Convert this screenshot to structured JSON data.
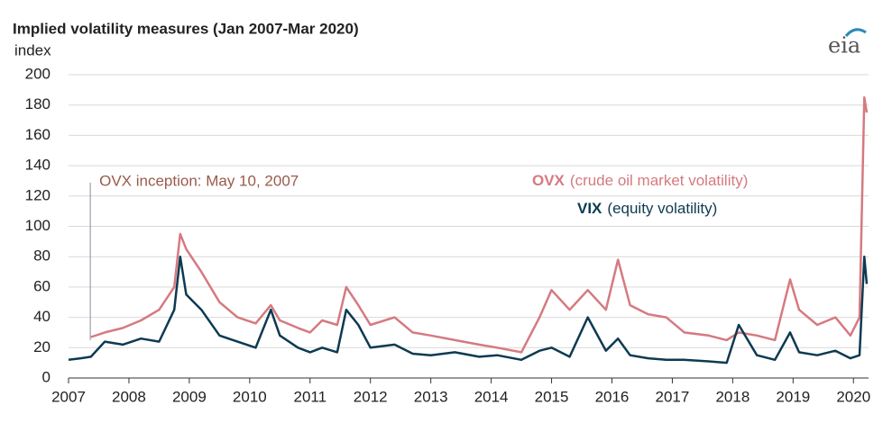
{
  "chart_data": {
    "type": "line",
    "title": "Implied volatility measures (Jan 2007-Mar 2020)",
    "y_label": "index",
    "logo": "eia",
    "annotation": "OVX inception: May 10, 2007",
    "annotation_x": 2007.36,
    "x": [
      2007.0,
      2007.2,
      2007.37,
      2007.6,
      2007.9,
      2008.2,
      2008.5,
      2008.75,
      2008.85,
      2008.95,
      2009.2,
      2009.5,
      2009.8,
      2010.1,
      2010.35,
      2010.5,
      2010.8,
      2011.0,
      2011.2,
      2011.45,
      2011.6,
      2011.8,
      2012.0,
      2012.4,
      2012.7,
      2013.0,
      2013.4,
      2013.8,
      2014.1,
      2014.5,
      2014.8,
      2015.0,
      2015.3,
      2015.6,
      2015.9,
      2016.1,
      2016.3,
      2016.6,
      2016.9,
      2017.2,
      2017.6,
      2017.9,
      2018.1,
      2018.4,
      2018.7,
      2018.95,
      2019.1,
      2019.4,
      2019.7,
      2019.95,
      2020.1,
      2020.18,
      2020.22
    ],
    "series": [
      {
        "name": "OVX",
        "description": "(crude oil market volatility)",
        "color": "#d57a80",
        "values": [
          null,
          null,
          27,
          30,
          33,
          38,
          45,
          60,
          95,
          85,
          70,
          50,
          40,
          36,
          48,
          38,
          33,
          30,
          38,
          35,
          60,
          48,
          35,
          40,
          30,
          28,
          25,
          22,
          20,
          17,
          40,
          58,
          45,
          58,
          45,
          78,
          48,
          42,
          40,
          30,
          28,
          25,
          30,
          28,
          25,
          65,
          45,
          35,
          40,
          28,
          40,
          185,
          175
        ]
      },
      {
        "name": "VIX",
        "description": "(equity volatility)",
        "color": "#0d3a52",
        "values": [
          12,
          13,
          14,
          24,
          22,
          26,
          24,
          45,
          80,
          55,
          45,
          28,
          24,
          20,
          45,
          28,
          20,
          17,
          20,
          17,
          45,
          35,
          20,
          22,
          16,
          15,
          17,
          14,
          15,
          12,
          18,
          20,
          14,
          40,
          18,
          26,
          15,
          13,
          12,
          12,
          11,
          10,
          35,
          15,
          12,
          30,
          17,
          15,
          18,
          13,
          15,
          80,
          62
        ]
      }
    ],
    "xlim": [
      2007,
      2020.25
    ],
    "xticks": [
      2007,
      2008,
      2009,
      2010,
      2011,
      2012,
      2013,
      2014,
      2015,
      2016,
      2017,
      2018,
      2019,
      2020
    ],
    "ylim": [
      0,
      200
    ],
    "yticks": [
      0,
      20,
      40,
      60,
      80,
      100,
      120,
      140,
      160,
      180,
      200
    ],
    "grid": true
  }
}
